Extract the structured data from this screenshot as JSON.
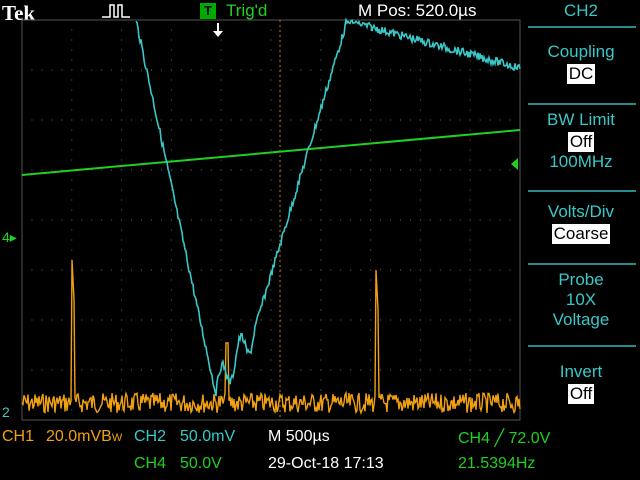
{
  "header": {
    "brand": "Tek",
    "trigger_badge": "T",
    "trigger_status": "Trig'd",
    "horizontal_position": "M Pos: 520.0µs"
  },
  "menu": {
    "channel": "CH2",
    "items": [
      {
        "label": "Coupling",
        "value": "DC"
      },
      {
        "label": "BW Limit",
        "value": "Off",
        "extra": "100MHz"
      },
      {
        "label": "Volts/Div",
        "value": "Coarse"
      },
      {
        "label": "Probe",
        "value": "10X",
        "extra": "Voltage"
      },
      {
        "label": "Invert",
        "value": "Off"
      }
    ]
  },
  "markers": {
    "ch4_ref": "4",
    "ch2_ref": "2"
  },
  "status": {
    "ch1": "CH1",
    "ch1_scale": "20.0mV",
    "ch1_bw": "B",
    "ch1_bw_sub": "W",
    "ch2": "CH2",
    "ch2_scale": "50.0mV",
    "timebase": "M 500µs",
    "trigger": "CH4 ╱ 72.0V",
    "ch4": "CH4",
    "ch4_scale": "50.0V",
    "datetime": "29-Oct-18 17:13",
    "frequency": "21.5394Hz"
  },
  "colors": {
    "ch1": "#f0a010",
    "ch2": "#39c8c8",
    "ch4": "#20d020",
    "graticule": "#6a6a6a"
  }
}
